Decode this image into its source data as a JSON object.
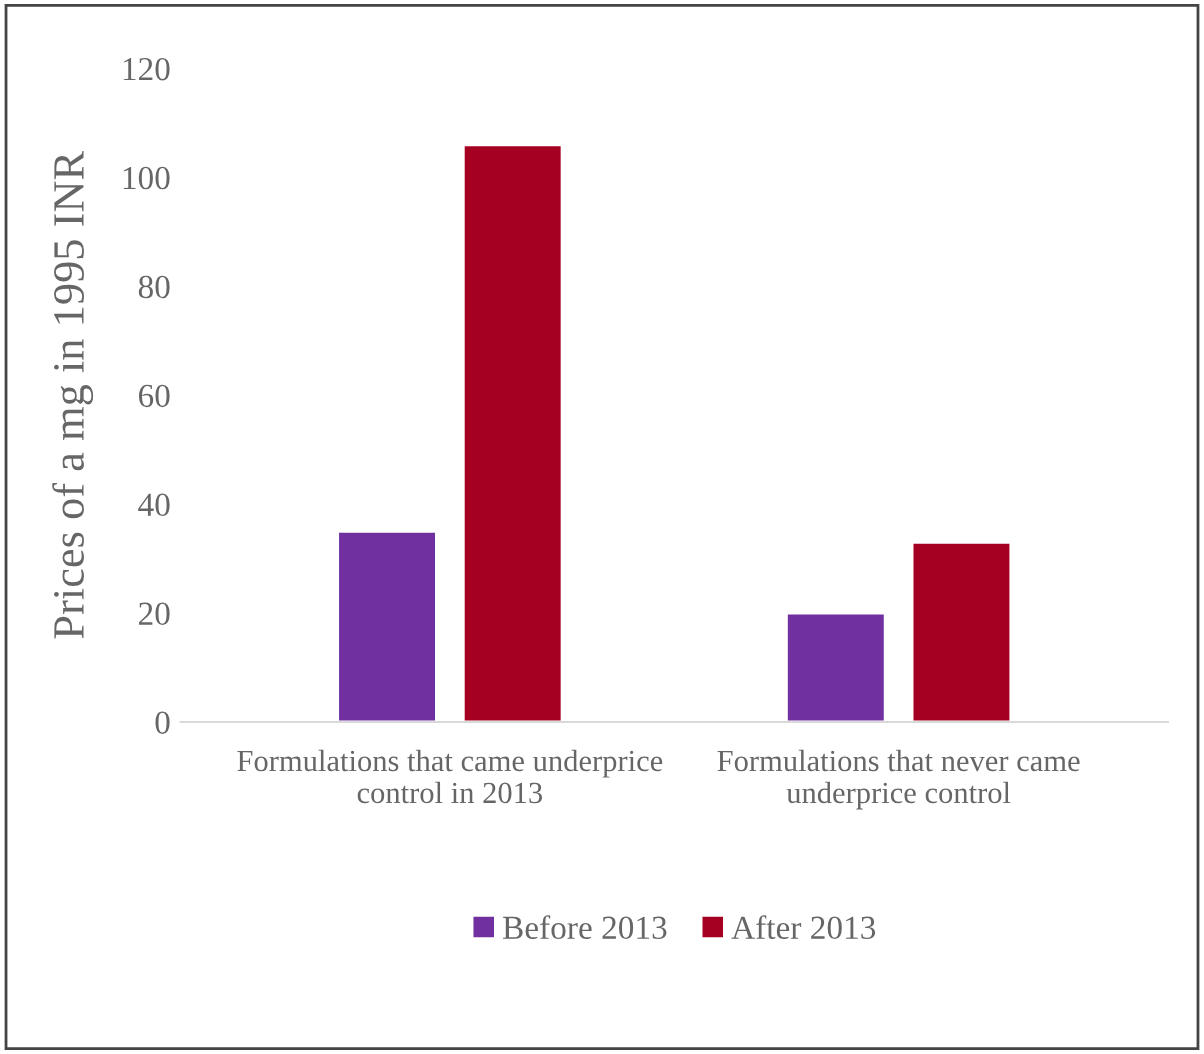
{
  "chart_data": {
    "type": "bar",
    "ylabel": "Prices of a mg in 1995 INR",
    "categories": [
      "Formulations that came underprice\ncontrol in 2013",
      "Formulations that never came\nunderprice control"
    ],
    "series": [
      {
        "name": "Before 2013",
        "color": "#7030a0",
        "values": [
          35,
          20
        ]
      },
      {
        "name": "After 2013",
        "color": "#a50021",
        "values": [
          106,
          33
        ]
      }
    ],
    "ylim": [
      0,
      120
    ],
    "yticks": [
      0,
      20,
      40,
      60,
      80,
      100,
      120
    ],
    "grid": false,
    "legend": "bottom"
  }
}
